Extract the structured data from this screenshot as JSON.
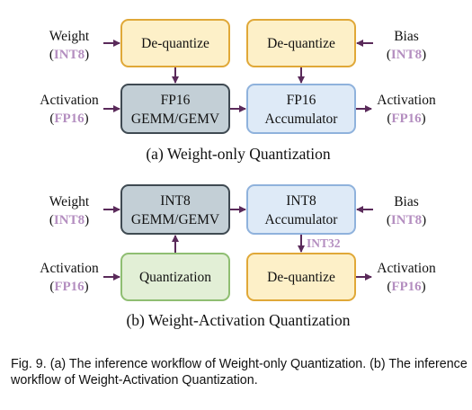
{
  "colors": {
    "arrow": "#5a2a5a",
    "dtype": "#b48ec0",
    "dequant_fill": "#fdf0c8",
    "dequant_stroke": "#e0a838",
    "gemm_fill": "#c3cfd6",
    "gemm_stroke": "#3f4a52",
    "accum_fill": "#deeaf7",
    "accum_stroke": "#8fb2dc",
    "quant_fill": "#e2efd6",
    "quant_stroke": "#8fbe72"
  },
  "diagram_a": {
    "caption": "(a) Weight-only Quantization",
    "weight": {
      "label": "Weight",
      "dtype": "INT8"
    },
    "bias": {
      "label": "Bias",
      "dtype": "INT8"
    },
    "activation_in": {
      "label": "Activation",
      "dtype": "FP16"
    },
    "activation_out": {
      "label": "Activation",
      "dtype": "FP16"
    },
    "dequant_left": "De-quantize",
    "dequant_right": "De-quantize",
    "gemm": {
      "line1": "FP16",
      "line2": "GEMM/GEMV"
    },
    "accumulator": {
      "line1": "FP16",
      "line2": "Accumulator"
    }
  },
  "diagram_b": {
    "caption": "(b) Weight-Activation Quantization",
    "weight": {
      "label": "Weight",
      "dtype": "INT8"
    },
    "bias": {
      "label": "Bias",
      "dtype": "INT8"
    },
    "activation_in": {
      "label": "Activation",
      "dtype": "FP16"
    },
    "activation_out": {
      "label": "Activation",
      "dtype": "FP16"
    },
    "gemm": {
      "line1": "INT8",
      "line2": "GEMM/GEMV"
    },
    "accumulator": {
      "line1": "INT8",
      "line2": "Accumulator"
    },
    "quantization": "Quantization",
    "dequant": "De-quantize",
    "edge_label": "INT32"
  },
  "figure_caption": "Fig. 9. (a) The inference workflow of Weight-only Quantization. (b) The inference workflow of Weight-Activation Quantization."
}
